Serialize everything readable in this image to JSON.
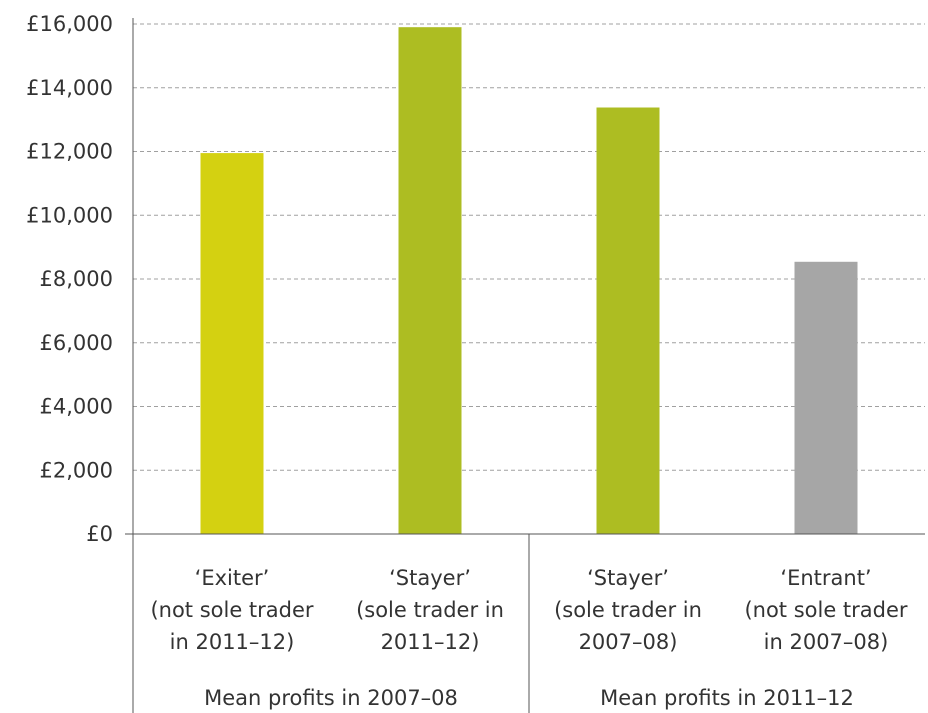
{
  "chart_data": {
    "type": "bar",
    "categories": [
      [
        "‘Exiter’",
        "(not sole trader",
        "in 2011–12)"
      ],
      [
        "‘Stayer’",
        "(sole trader in",
        "2011–12)"
      ],
      [
        "‘Stayer’",
        "(sole trader in",
        "2007–08)"
      ],
      [
        "‘Entrant’",
        "(not sole trader",
        "in 2007–08)"
      ]
    ],
    "values": [
      11950,
      15900,
      13380,
      8540
    ],
    "colors": [
      "#d4d111",
      "#adbd22",
      "#adbd22",
      "#a6a6a6"
    ],
    "groups": [
      {
        "label": "Mean profits in 2007–08",
        "members": [
          0,
          1
        ]
      },
      {
        "label": "Mean profits in 2011–12",
        "members": [
          2,
          3
        ]
      }
    ],
    "yticks": [
      "£0",
      "£2,000",
      "£4,000",
      "£6,000",
      "£8,000",
      "£10,000",
      "£12,000",
      "£14,000",
      "£16,000"
    ],
    "ytick_values": [
      0,
      2000,
      4000,
      6000,
      8000,
      10000,
      12000,
      14000,
      16000
    ],
    "ylim": [
      0,
      16000
    ],
    "grid": true,
    "grid_style": "dashed",
    "title": "",
    "xlabel": "",
    "ylabel": ""
  }
}
